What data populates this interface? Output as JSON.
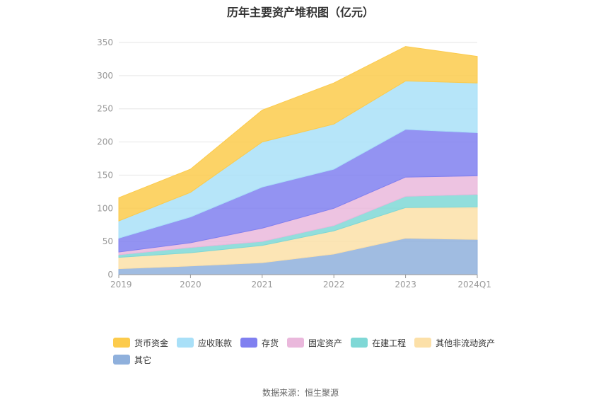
{
  "title": "历年主要资产堆积图（亿元）",
  "source": "数据来源：恒生聚源",
  "chart_data": {
    "type": "area",
    "stacked": true,
    "categories": [
      "2019",
      "2020",
      "2021",
      "2022",
      "2023",
      "2024Q1"
    ],
    "ylim": [
      0,
      350
    ],
    "yticks": [
      0,
      50,
      100,
      150,
      200,
      250,
      300,
      350
    ],
    "grid": true,
    "legend_position": "bottom",
    "series": [
      {
        "name": "其它",
        "color": "#8fb0dc",
        "values": [
          9,
          13,
          18,
          31,
          55,
          53
        ]
      },
      {
        "name": "其他非流动资产",
        "color": "#fce0a8",
        "values": [
          17,
          20,
          26,
          35,
          46,
          49
        ]
      },
      {
        "name": "在建工程",
        "color": "#7fd8d6",
        "values": [
          4,
          8,
          6,
          8,
          17,
          19
        ]
      },
      {
        "name": "固定资产",
        "color": "#eab8dc",
        "values": [
          4,
          7,
          20,
          26,
          29,
          28
        ]
      },
      {
        "name": "存货",
        "color": "#8080f0",
        "values": [
          21,
          39,
          62,
          59,
          72,
          65
        ]
      },
      {
        "name": "应收账款",
        "color": "#a9e0f8",
        "values": [
          26,
          37,
          68,
          68,
          73,
          75
        ]
      },
      {
        "name": "货币资金",
        "color": "#fccb4c",
        "values": [
          35,
          35,
          48,
          62,
          52,
          40
        ]
      }
    ],
    "legend_order": [
      "货币资金",
      "应收账款",
      "存货",
      "固定资产",
      "在建工程",
      "其他非流动资产",
      "其它"
    ]
  }
}
